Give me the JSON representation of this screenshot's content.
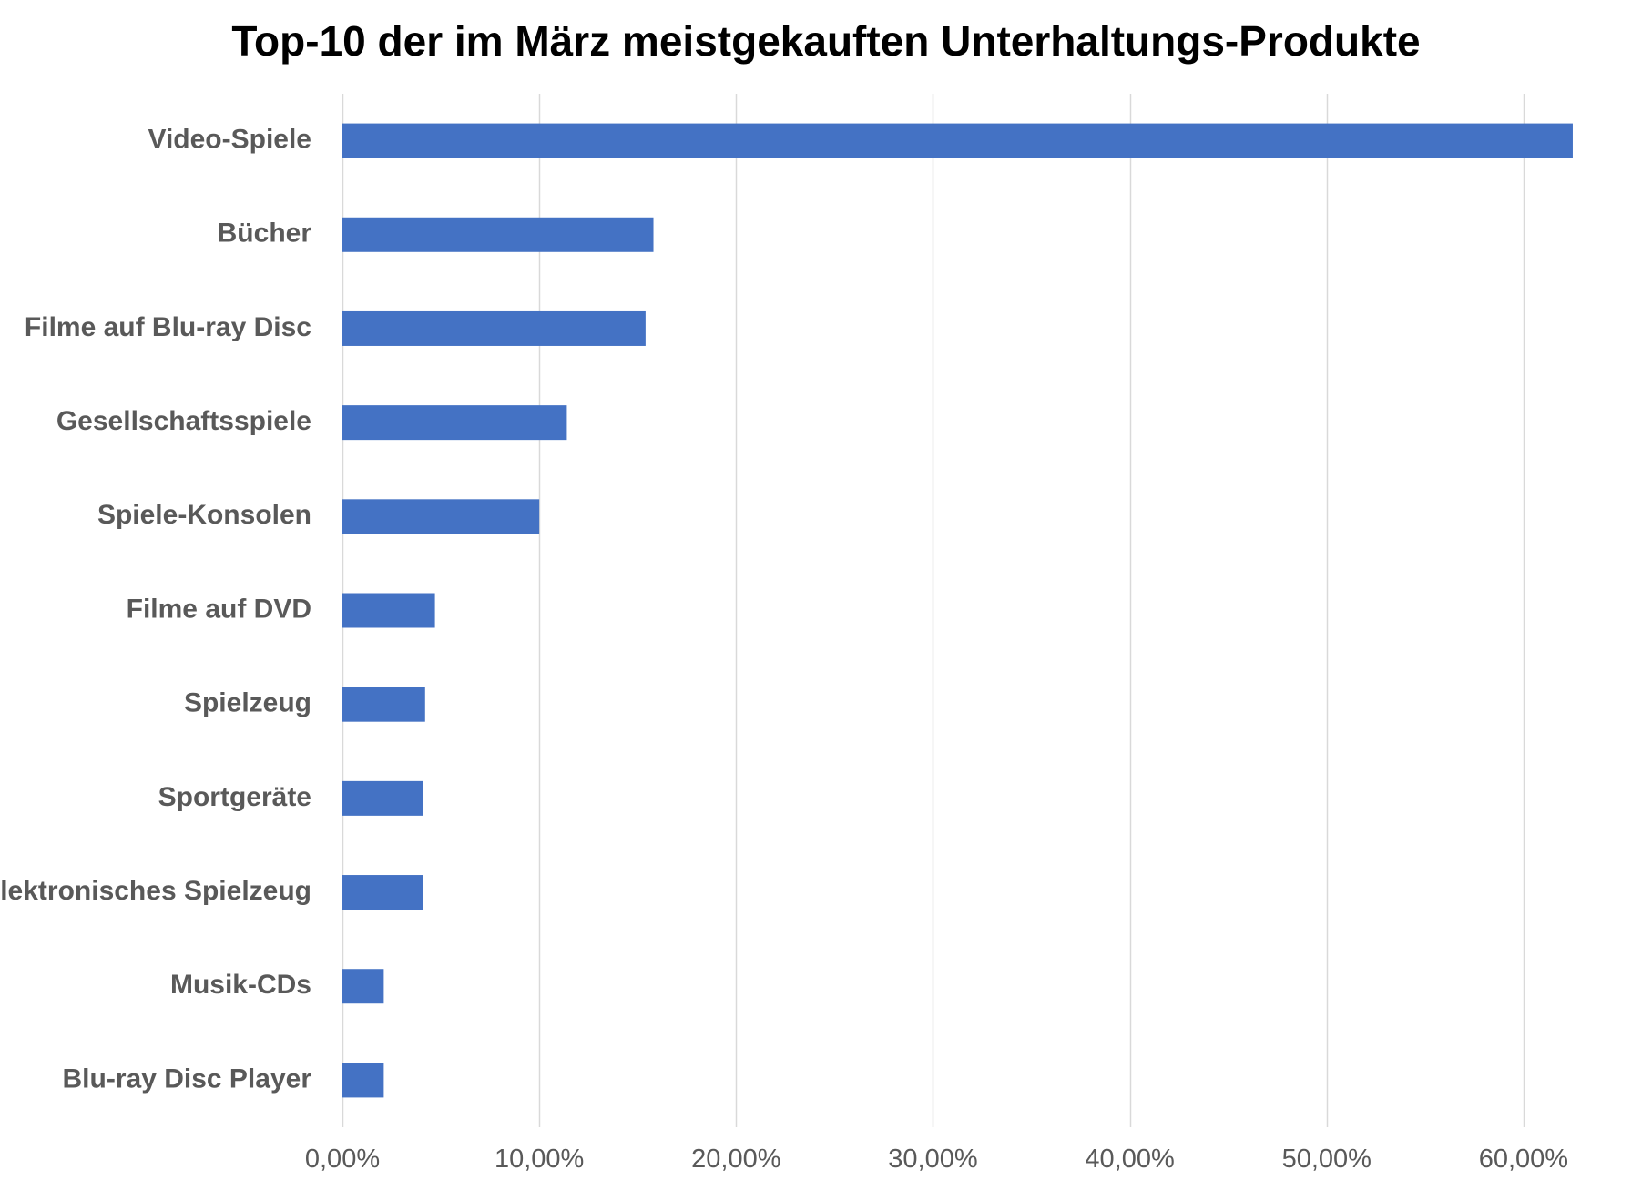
{
  "chart_data": {
    "type": "bar",
    "orientation": "horizontal",
    "title": "Top-10 der im März meistgekauften Unterhaltungs-Produkte",
    "xlabel": "",
    "ylabel": "",
    "categories": [
      "Video-Spiele",
      "Bücher",
      "Filme auf Blu-ray Disc",
      "Gesellschaftsspiele",
      "Spiele-Konsolen",
      "Filme auf DVD",
      "Spielzeug",
      "Sportgeräte",
      "Elektronisches Spielzeug",
      "Musik-CDs",
      "Blu-ray Disc Player"
    ],
    "values": [
      62.5,
      15.8,
      15.4,
      11.4,
      10.0,
      4.7,
      4.2,
      4.1,
      4.1,
      2.1,
      2.1
    ],
    "xlim": [
      0,
      65
    ],
    "ticks": [
      0,
      10,
      20,
      30,
      40,
      50,
      60
    ],
    "tick_labels": [
      "0,00%",
      "10,00%",
      "20,00%",
      "30,00%",
      "40,00%",
      "50,00%",
      "60,00%"
    ],
    "grid": true,
    "bar_color": "#4472C4",
    "grid_color": "#D9D9D9"
  }
}
